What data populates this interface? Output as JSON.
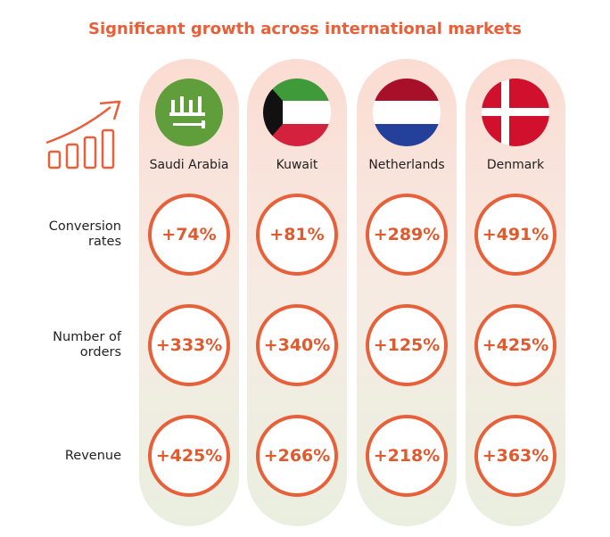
{
  "title": "Significant growth across international markets",
  "columns": [
    {
      "name": "Saudi Arabia"
    },
    {
      "name": "Kuwait"
    },
    {
      "name": "Netherlands"
    },
    {
      "name": "Denmark"
    }
  ],
  "rows": [
    {
      "label": "Conversion rates",
      "values": [
        "+74%",
        "+81%",
        "+289%",
        "+491%"
      ]
    },
    {
      "label": "Number of orders",
      "values": [
        "+333%",
        "+340%",
        "+125%",
        "+425%"
      ]
    },
    {
      "label": "Revenue",
      "values": [
        "+425%",
        "+266%",
        "+218%",
        "+363%"
      ]
    }
  ]
}
